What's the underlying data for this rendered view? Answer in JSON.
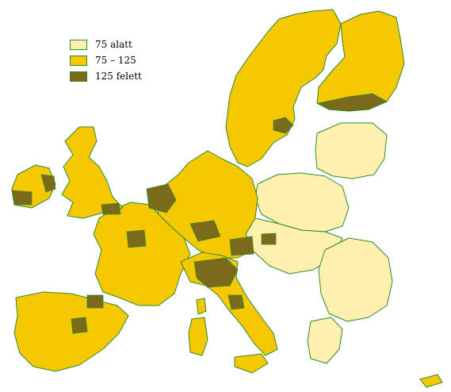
{
  "legend": {
    "items": [
      {
        "label": "75 alatt",
        "color": "#fff0b0"
      },
      {
        "label": "75 – 125",
        "color": "#f5c800"
      },
      {
        "label": "125 felett",
        "color": "#7a6a1a"
      }
    ]
  },
  "map": {
    "border_color": "#2e8b2e",
    "regions": [
      {
        "id": "scandinavia",
        "level": 1
      },
      {
        "id": "finland",
        "level": 1
      },
      {
        "id": "baltics",
        "level": 0
      },
      {
        "id": "poland",
        "level": 0
      },
      {
        "id": "central-east",
        "level": 0
      },
      {
        "id": "romania-bulgaria",
        "level": 0
      },
      {
        "id": "germany-benelux-austria",
        "level": 1
      },
      {
        "id": "france",
        "level": 1
      },
      {
        "id": "iberia",
        "level": 1
      },
      {
        "id": "italy",
        "level": 1
      },
      {
        "id": "uk",
        "level": 1
      },
      {
        "id": "ireland",
        "level": 1
      },
      {
        "id": "greece",
        "level": 0
      }
    ]
  }
}
